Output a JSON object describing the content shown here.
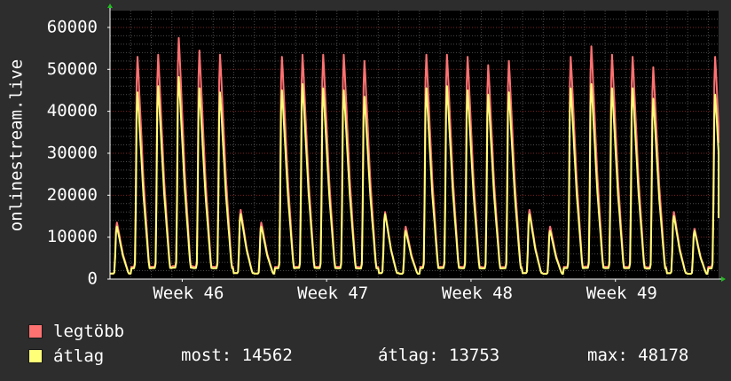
{
  "colors": {
    "background": "#2d2d2d",
    "plot_background": "#000000",
    "grid_major": "#7a2323",
    "grid_minor": "#4a4a4a",
    "axis": "#ffffff",
    "arrow": "#22bb22",
    "max_area_color": "#ff7272",
    "avg_area_color": "#ffff78"
  },
  "chart_data": {
    "type": "line",
    "ylabel": "onlinestream.live",
    "ylim": [
      0,
      64000
    ],
    "yticks": [
      0,
      10000,
      20000,
      30000,
      40000,
      50000,
      60000
    ],
    "ytick_labels": [
      "0",
      "10000",
      "20000",
      "30000",
      "40000",
      "50000",
      "60000"
    ],
    "xlim": [
      0,
      29.5
    ],
    "xticks": [
      3.5,
      10.5,
      17.5,
      24.5
    ],
    "xtick_labels": [
      "Week 46",
      "Week 47",
      "Week 48",
      "Week 49"
    ],
    "x_unit": "days (ticks at week midpoints)",
    "grid": true,
    "series": [
      {
        "name": "legtöbb",
        "color": "#ff7272",
        "daily_peaks": [
          13500,
          53000,
          53500,
          57500,
          54500,
          53500,
          16500,
          13500,
          53000,
          53500,
          53500,
          53500,
          52000,
          16000,
          12500,
          53500,
          53500,
          53000,
          51000,
          52000,
          16500,
          12500,
          53000,
          55500,
          53500,
          53000,
          50500,
          16000,
          12000,
          53000
        ],
        "last_value": 32500
      },
      {
        "name": "átlag",
        "color": "#ffff78",
        "daily_peaks": [
          12500,
          44500,
          46000,
          48178,
          45500,
          44500,
          15500,
          12500,
          45000,
          46500,
          45500,
          45000,
          43500,
          15500,
          11500,
          45500,
          46000,
          45000,
          44000,
          44500,
          15500,
          11500,
          45500,
          46500,
          45500,
          45500,
          43000,
          15000,
          11500,
          44000
        ],
        "last_value": 14562
      }
    ]
  },
  "legend": {
    "max_label": "legtöbb",
    "avg_label": "átlag"
  },
  "stats": {
    "current_label": "most:",
    "current_value": "14562",
    "average_label": "átlag:",
    "average_value": "13753",
    "max_label": "max:",
    "max_value": "48178"
  }
}
